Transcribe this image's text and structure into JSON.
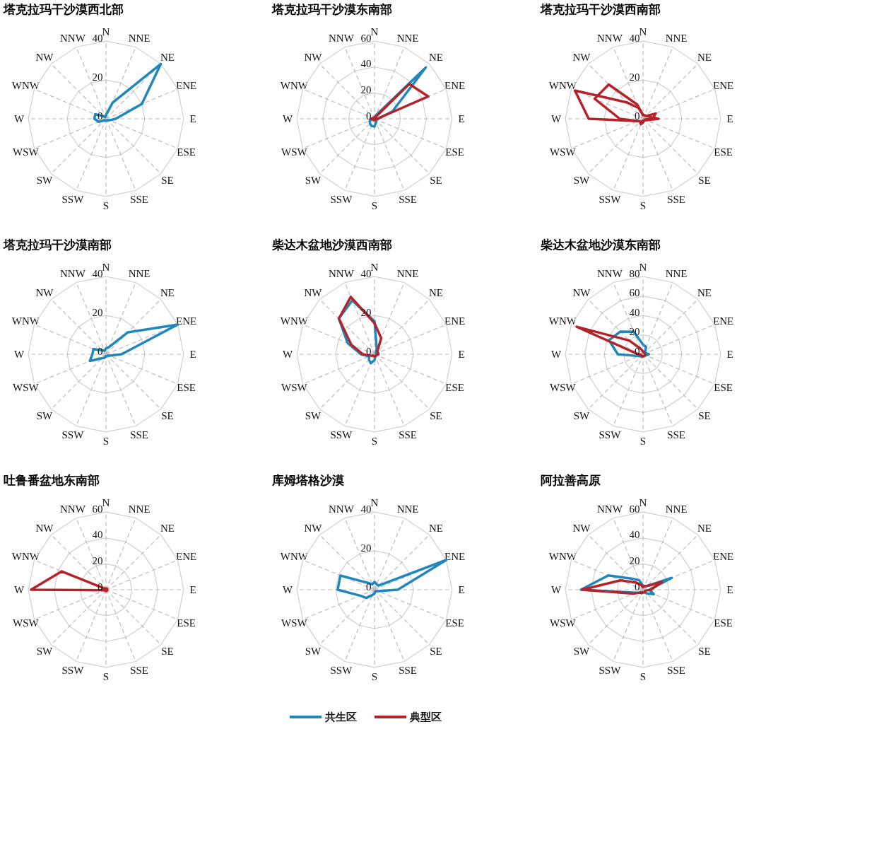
{
  "chart_data": [
    {
      "type": "radar",
      "title": "塔克拉玛干沙漠西北部",
      "categories": [
        "N",
        "NNE",
        "NE",
        "ENE",
        "E",
        "ESE",
        "SE",
        "SSE",
        "S",
        "SSW",
        "SW",
        "WSW",
        "W",
        "WNW",
        "NW",
        "NNW"
      ],
      "ylim": [
        0,
        40
      ],
      "yticks": [
        0,
        20,
        40
      ],
      "grid": true,
      "series": [
        {
          "name": "共生区",
          "color": "#1f87b9",
          "values": [
            2,
            9,
            40,
            20,
            5,
            2,
            1,
            1,
            1,
            1,
            1,
            4,
            6,
            6,
            2,
            1
          ]
        }
      ]
    },
    {
      "type": "radar",
      "title": "塔克拉玛干沙漠东南部",
      "categories": [
        "N",
        "NNE",
        "NE",
        "ENE",
        "E",
        "ESE",
        "SE",
        "SSE",
        "S",
        "SSW",
        "SW",
        "WSW",
        "W",
        "WNW",
        "NW",
        "NNW"
      ],
      "ylim": [
        0,
        60
      ],
      "yticks": [
        0,
        20,
        40,
        60
      ],
      "grid": true,
      "series": [
        {
          "name": "共生区",
          "color": "#1f87b9",
          "values": [
            1,
            3,
            56,
            15,
            3,
            2,
            2,
            3,
            6,
            6,
            5,
            4,
            1,
            1,
            1,
            1
          ]
        },
        {
          "name": "典型区",
          "color": "#b5232a",
          "values": [
            1,
            1,
            38,
            45,
            2,
            1,
            1,
            1,
            1,
            1,
            1,
            1,
            3,
            1,
            1,
            1
          ]
        }
      ]
    },
    {
      "type": "radar",
      "title": "塔克拉玛干沙漠西南部",
      "categories": [
        "N",
        "NNE",
        "NE",
        "ENE",
        "E",
        "ESE",
        "SE",
        "SSE",
        "S",
        "SSW",
        "SW",
        "WSW",
        "W",
        "WNW",
        "NW",
        "NNW"
      ],
      "ylim": [
        0,
        40
      ],
      "yticks": [
        0,
        20,
        40
      ],
      "grid": true,
      "series": [
        {
          "name": "典型区",
          "color": "#b5232a",
          "values": [
            2,
            2,
            2,
            3,
            8,
            2,
            1,
            1,
            2,
            3,
            2,
            3,
            28,
            38,
            12,
            6
          ]
        },
        {
          "color": "#b5232a",
          "values": [
            2,
            2,
            2,
            7,
            5,
            1,
            1,
            1,
            1,
            2,
            2,
            3,
            12,
            27,
            25,
            8
          ]
        }
      ]
    },
    {
      "type": "radar",
      "title": "塔克拉玛干沙漠南部",
      "categories": [
        "N",
        "NNE",
        "NE",
        "ENE",
        "E",
        "ESE",
        "SE",
        "SSE",
        "S",
        "SSW",
        "SW",
        "WSW",
        "W",
        "WNW",
        "NW",
        "NNW"
      ],
      "ylim": [
        0,
        40
      ],
      "yticks": [
        0,
        20,
        40
      ],
      "grid": true,
      "series": [
        {
          "name": "共生区",
          "color": "#1f87b9",
          "values": [
            3,
            4,
            16,
            40,
            8,
            2,
            1,
            1,
            1,
            2,
            3,
            9,
            7,
            7,
            3,
            2
          ]
        }
      ]
    },
    {
      "type": "radar",
      "title": "柴达木盆地沙漠西南部",
      "categories": [
        "N",
        "NNE",
        "NE",
        "ENE",
        "E",
        "ESE",
        "SE",
        "SSE",
        "S",
        "SSW",
        "SW",
        "WSW",
        "W",
        "WNW",
        "NW",
        "NNW"
      ],
      "ylim": [
        0,
        40
      ],
      "yticks": [
        0,
        20,
        40
      ],
      "grid": true,
      "series": [
        {
          "name": "共生区",
          "color": "#1f87b9",
          "values": [
            17,
            3,
            1,
            1,
            2,
            1,
            1,
            1,
            3,
            5,
            4,
            3,
            7,
            15,
            26,
            30
          ]
        },
        {
          "name": "典型区",
          "color": "#b5232a",
          "values": [
            16,
            9,
            2,
            2,
            2,
            1,
            1,
            1,
            1,
            1,
            1,
            2,
            6,
            13,
            26,
            32
          ]
        }
      ]
    },
    {
      "type": "radar",
      "title": "柴达木盆地沙漠东南部",
      "categories": [
        "N",
        "NNE",
        "NE",
        "ENE",
        "E",
        "ESE",
        "SE",
        "SSE",
        "S",
        "SSW",
        "SW",
        "WSW",
        "W",
        "WNW",
        "NW",
        "NNW"
      ],
      "ylim": [
        0,
        80
      ],
      "yticks": [
        0,
        20,
        40,
        60,
        80
      ],
      "grid": true,
      "series": [
        {
          "name": "共生区",
          "color": "#1f87b9",
          "values": [
            10,
            8,
            3,
            3,
            6,
            3,
            2,
            2,
            2,
            3,
            3,
            5,
            26,
            38,
            33,
            25
          ]
        },
        {
          "name": "典型区",
          "color": "#b5232a",
          "values": [
            3,
            2,
            2,
            2,
            2,
            2,
            2,
            2,
            2,
            2,
            2,
            2,
            5,
            74,
            20,
            6
          ]
        }
      ]
    },
    {
      "type": "radar",
      "title": "吐鲁番盆地东南部",
      "categories": [
        "N",
        "NNE",
        "NE",
        "ENE",
        "E",
        "ESE",
        "SE",
        "SSE",
        "S",
        "SSW",
        "SW",
        "WSW",
        "W",
        "WNW",
        "NW",
        "NNW"
      ],
      "ylim": [
        0,
        60
      ],
      "yticks": [
        0,
        20,
        40,
        60
      ],
      "grid": true,
      "series": [
        {
          "name": "典型区",
          "color": "#b5232a",
          "values": [
            1,
            1,
            1,
            1,
            1,
            1,
            1,
            1,
            1,
            1,
            1,
            1,
            58,
            37,
            1,
            1
          ]
        }
      ]
    },
    {
      "type": "radar",
      "title": "库姆塔格沙漠",
      "categories": [
        "N",
        "NNE",
        "NE",
        "ENE",
        "E",
        "ESE",
        "SE",
        "SSE",
        "S",
        "SSW",
        "SW",
        "WSW",
        "W",
        "WNW",
        "NW",
        "NNW"
      ],
      "ylim": [
        0,
        40
      ],
      "yticks": [
        0,
        20,
        40
      ],
      "grid": true,
      "legend": "bottom",
      "series": [
        {
          "name": "共生区",
          "color": "#1f87b9",
          "values": [
            4,
            3,
            3,
            40,
            12,
            2,
            1,
            1,
            2,
            3,
            6,
            8,
            19,
            19,
            5,
            3
          ]
        }
      ]
    },
    {
      "type": "radar",
      "title": "阿拉善高原",
      "categories": [
        "N",
        "NNE",
        "NE",
        "ENE",
        "E",
        "ESE",
        "SE",
        "SSE",
        "S",
        "SSW",
        "SW",
        "WSW",
        "W",
        "WNW",
        "NW",
        "NNW"
      ],
      "ylim": [
        0,
        60
      ],
      "yticks": [
        0,
        20,
        40,
        60
      ],
      "grid": true,
      "series": [
        {
          "name": "共生区",
          "color": "#1f87b9",
          "values": [
            3,
            3,
            4,
            24,
            5,
            9,
            4,
            2,
            2,
            2,
            3,
            6,
            48,
            29,
            12,
            8
          ]
        },
        {
          "name": "典型区",
          "color": "#b5232a",
          "values": [
            2,
            3,
            4,
            16,
            6,
            2,
            2,
            2,
            2,
            3,
            3,
            8,
            47,
            19,
            8,
            4
          ]
        }
      ]
    }
  ]
}
